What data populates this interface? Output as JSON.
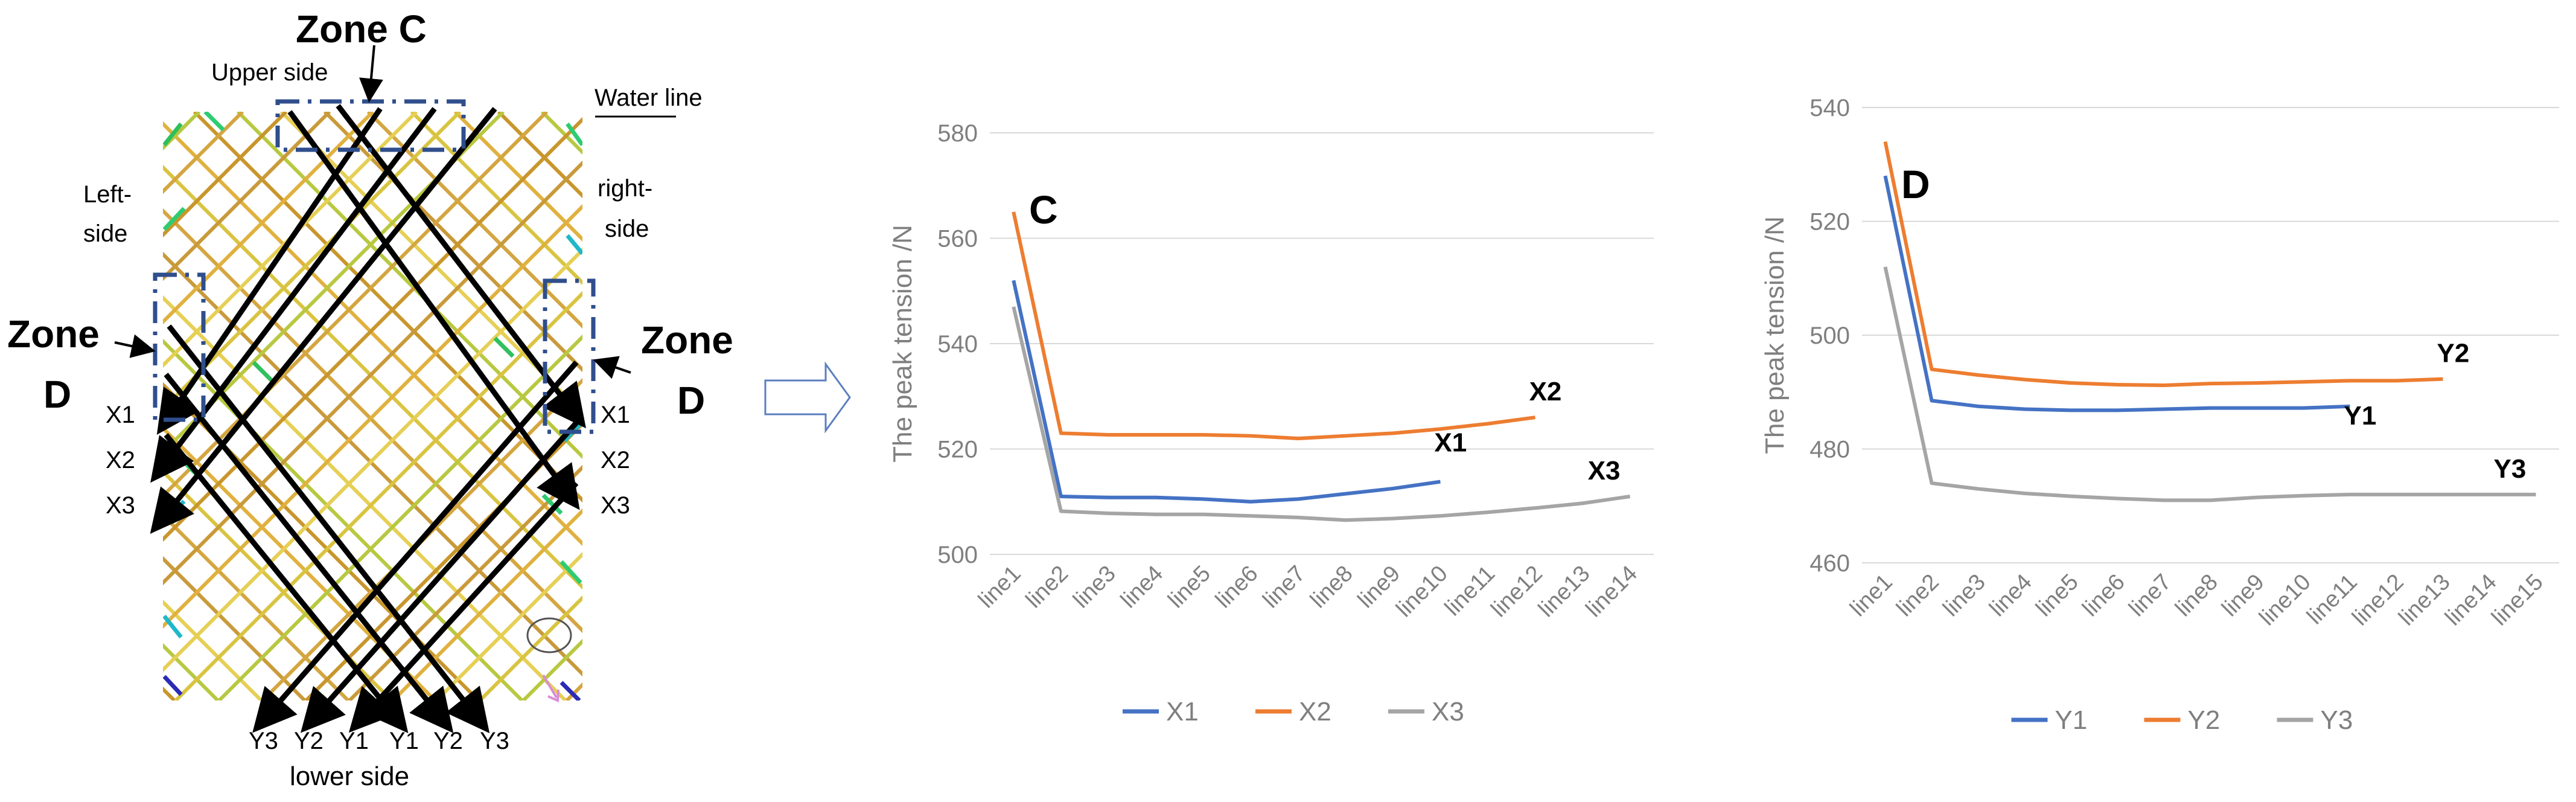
{
  "diagram": {
    "zone_c_label": "Zone C",
    "upper_side_label": "Upper side",
    "water_line_label": "Water line",
    "left_side_label": [
      "Left-",
      "side"
    ],
    "right_side_label": [
      "right-",
      "side"
    ],
    "zone_d_left_label": [
      "Zone",
      "D"
    ],
    "zone_d_right_label": [
      "Zone",
      "D"
    ],
    "left_x_labels": [
      "X1",
      "X2",
      "X3"
    ],
    "right_x_labels": [
      "X1",
      "X2",
      "X3"
    ],
    "bottom_y_labels": [
      "Y3",
      "Y2",
      "Y1",
      "Y1",
      "Y2",
      "Y3"
    ],
    "lower_side_label": "lower side"
  },
  "chart_data": [
    {
      "type": "line",
      "panel_letter": "C",
      "ylabel": "The peak tension /N",
      "ylim": [
        500,
        580
      ],
      "yticks": [
        500,
        520,
        540,
        560,
        580
      ],
      "grid": true,
      "legend_position": "bottom",
      "categories": [
        "line1",
        "line2",
        "line3",
        "line4",
        "line5",
        "line6",
        "line7",
        "line8",
        "line9",
        "line10",
        "line11",
        "line12",
        "line13",
        "line14"
      ],
      "series": [
        {
          "name": "X1",
          "color": "#4472C4",
          "values": [
            552,
            511,
            510.8,
            510.8,
            510.5,
            510,
            510.5,
            511.5,
            512.5,
            513.8,
            null,
            null,
            null,
            null
          ]
        },
        {
          "name": "X2",
          "color": "#ED7D31",
          "values": [
            565,
            523,
            522.7,
            522.7,
            522.7,
            522.5,
            522,
            522.5,
            523,
            523.8,
            524.8,
            526,
            null,
            null
          ]
        },
        {
          "name": "X3",
          "color": "#A5A5A5",
          "values": [
            547,
            508.2,
            507.8,
            507.6,
            507.6,
            507.3,
            507,
            506.5,
            506.8,
            507.3,
            508,
            508.8,
            509.7,
            511
          ]
        }
      ],
      "annotations": [
        {
          "text": "X1",
          "series": "X1"
        },
        {
          "text": "X2",
          "series": "X2"
        },
        {
          "text": "X3",
          "series": "X3"
        }
      ]
    },
    {
      "type": "line",
      "panel_letter": "D",
      "ylabel": "The peak tension /N",
      "ylim": [
        460,
        540
      ],
      "yticks": [
        460,
        480,
        500,
        520,
        540
      ],
      "grid": true,
      "legend_position": "bottom",
      "categories": [
        "line1",
        "line2",
        "line3",
        "line4",
        "line5",
        "line6",
        "line7",
        "line8",
        "line9",
        "line10",
        "line11",
        "line12",
        "line13",
        "line14",
        "line15"
      ],
      "series": [
        {
          "name": "Y1",
          "color": "#4472C4",
          "values": [
            528,
            488.5,
            487.5,
            487,
            486.8,
            486.8,
            487,
            487.2,
            487.2,
            487.2,
            487.5,
            null,
            null,
            null,
            null
          ]
        },
        {
          "name": "Y2",
          "color": "#ED7D31",
          "values": [
            534,
            494,
            493,
            492.2,
            491.6,
            491.3,
            491.2,
            491.5,
            491.6,
            491.8,
            492,
            492,
            492.3,
            null,
            null
          ]
        },
        {
          "name": "Y3",
          "color": "#A5A5A5",
          "values": [
            512,
            474,
            473,
            472.2,
            471.7,
            471.3,
            471,
            471,
            471.5,
            471.8,
            472,
            472,
            472,
            472,
            472
          ]
        }
      ],
      "annotations": [
        {
          "text": "Y1",
          "series": "Y1"
        },
        {
          "text": "Y2",
          "series": "Y2"
        },
        {
          "text": "Y3",
          "series": "Y3"
        }
      ]
    }
  ]
}
